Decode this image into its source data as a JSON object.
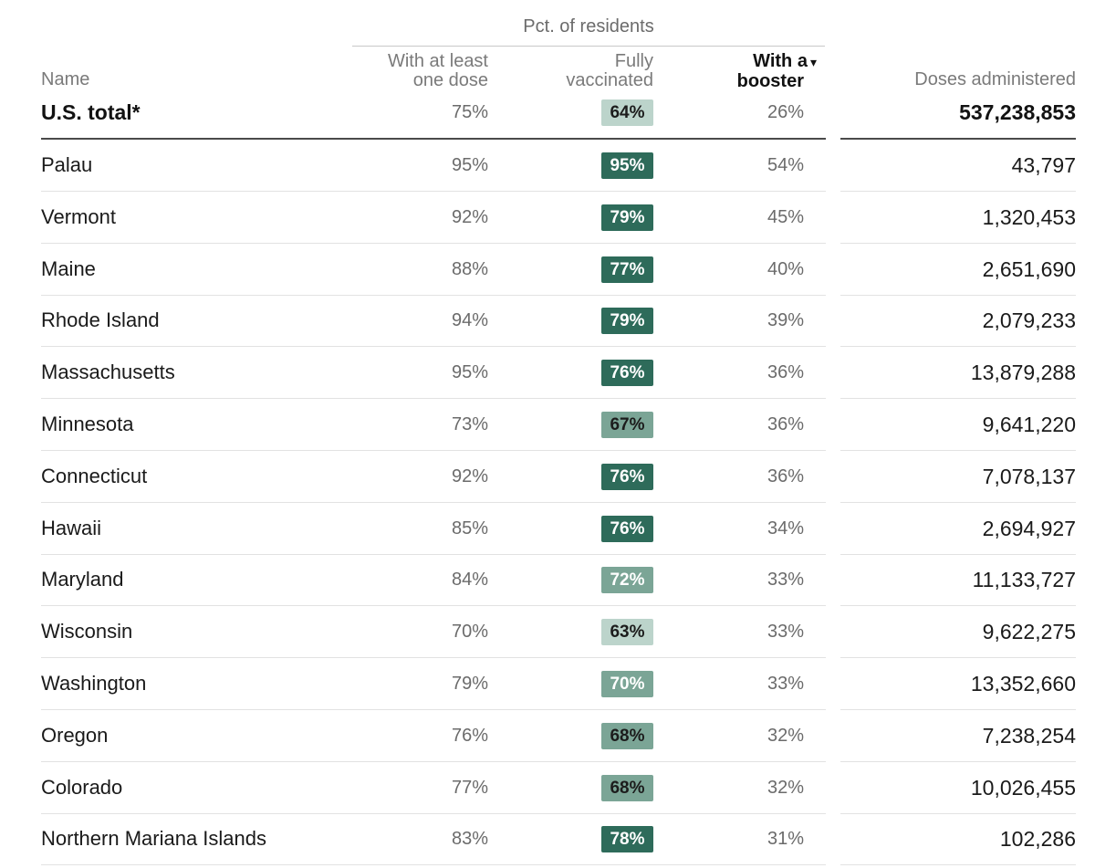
{
  "header": {
    "group_title": "Pct. of residents",
    "name": "Name",
    "dose1_line1": "With at least",
    "dose1_line2": "one dose",
    "full_line1": "Fully",
    "full_line2": "vaccinated",
    "boost_line1": "With a",
    "boost_line2": "booster",
    "sort_arrow": "▾",
    "doses": "Doses administered"
  },
  "total": {
    "name": "U.S. total*",
    "dose1": "75%",
    "full": "64%",
    "full_value": 64,
    "boost": "26%",
    "doses": "537,238,853"
  },
  "colors": {
    "dark": "#2e6b5a",
    "mid": "#7ba596",
    "light": "#bcd4cb",
    "text_dark": "#1c1c1c",
    "text_light": "#ffffff"
  },
  "chart_data": {
    "type": "table",
    "columns": [
      "Name",
      "With at least one dose",
      "Fully vaccinated",
      "With a booster",
      "Doses administered"
    ],
    "sorted_by": "With a booster",
    "rows": [
      {
        "name": "Palau",
        "dose1": "95%",
        "full": "95%",
        "full_value": 95,
        "boost": "54%",
        "doses": "43,797"
      },
      {
        "name": "Vermont",
        "dose1": "92%",
        "full": "79%",
        "full_value": 79,
        "boost": "45%",
        "doses": "1,320,453"
      },
      {
        "name": "Maine",
        "dose1": "88%",
        "full": "77%",
        "full_value": 77,
        "boost": "40%",
        "doses": "2,651,690"
      },
      {
        "name": "Rhode Island",
        "dose1": "94%",
        "full": "79%",
        "full_value": 79,
        "boost": "39%",
        "doses": "2,079,233"
      },
      {
        "name": "Massachusetts",
        "dose1": "95%",
        "full": "76%",
        "full_value": 76,
        "boost": "36%",
        "doses": "13,879,288"
      },
      {
        "name": "Minnesota",
        "dose1": "73%",
        "full": "67%",
        "full_value": 67,
        "boost": "36%",
        "doses": "9,641,220"
      },
      {
        "name": "Connecticut",
        "dose1": "92%",
        "full": "76%",
        "full_value": 76,
        "boost": "36%",
        "doses": "7,078,137"
      },
      {
        "name": "Hawaii",
        "dose1": "85%",
        "full": "76%",
        "full_value": 76,
        "boost": "34%",
        "doses": "2,694,927"
      },
      {
        "name": "Maryland",
        "dose1": "84%",
        "full": "72%",
        "full_value": 72,
        "boost": "33%",
        "doses": "11,133,727"
      },
      {
        "name": "Wisconsin",
        "dose1": "70%",
        "full": "63%",
        "full_value": 63,
        "boost": "33%",
        "doses": "9,622,275"
      },
      {
        "name": "Washington",
        "dose1": "79%",
        "full": "70%",
        "full_value": 70,
        "boost": "33%",
        "doses": "13,352,660"
      },
      {
        "name": "Oregon",
        "dose1": "76%",
        "full": "68%",
        "full_value": 68,
        "boost": "32%",
        "doses": "7,238,254"
      },
      {
        "name": "Colorado",
        "dose1": "77%",
        "full": "68%",
        "full_value": 68,
        "boost": "32%",
        "doses": "10,026,455"
      },
      {
        "name": "Northern Mariana Islands",
        "dose1": "83%",
        "full": "78%",
        "full_value": 78,
        "boost": "31%",
        "doses": "102,286"
      }
    ]
  }
}
